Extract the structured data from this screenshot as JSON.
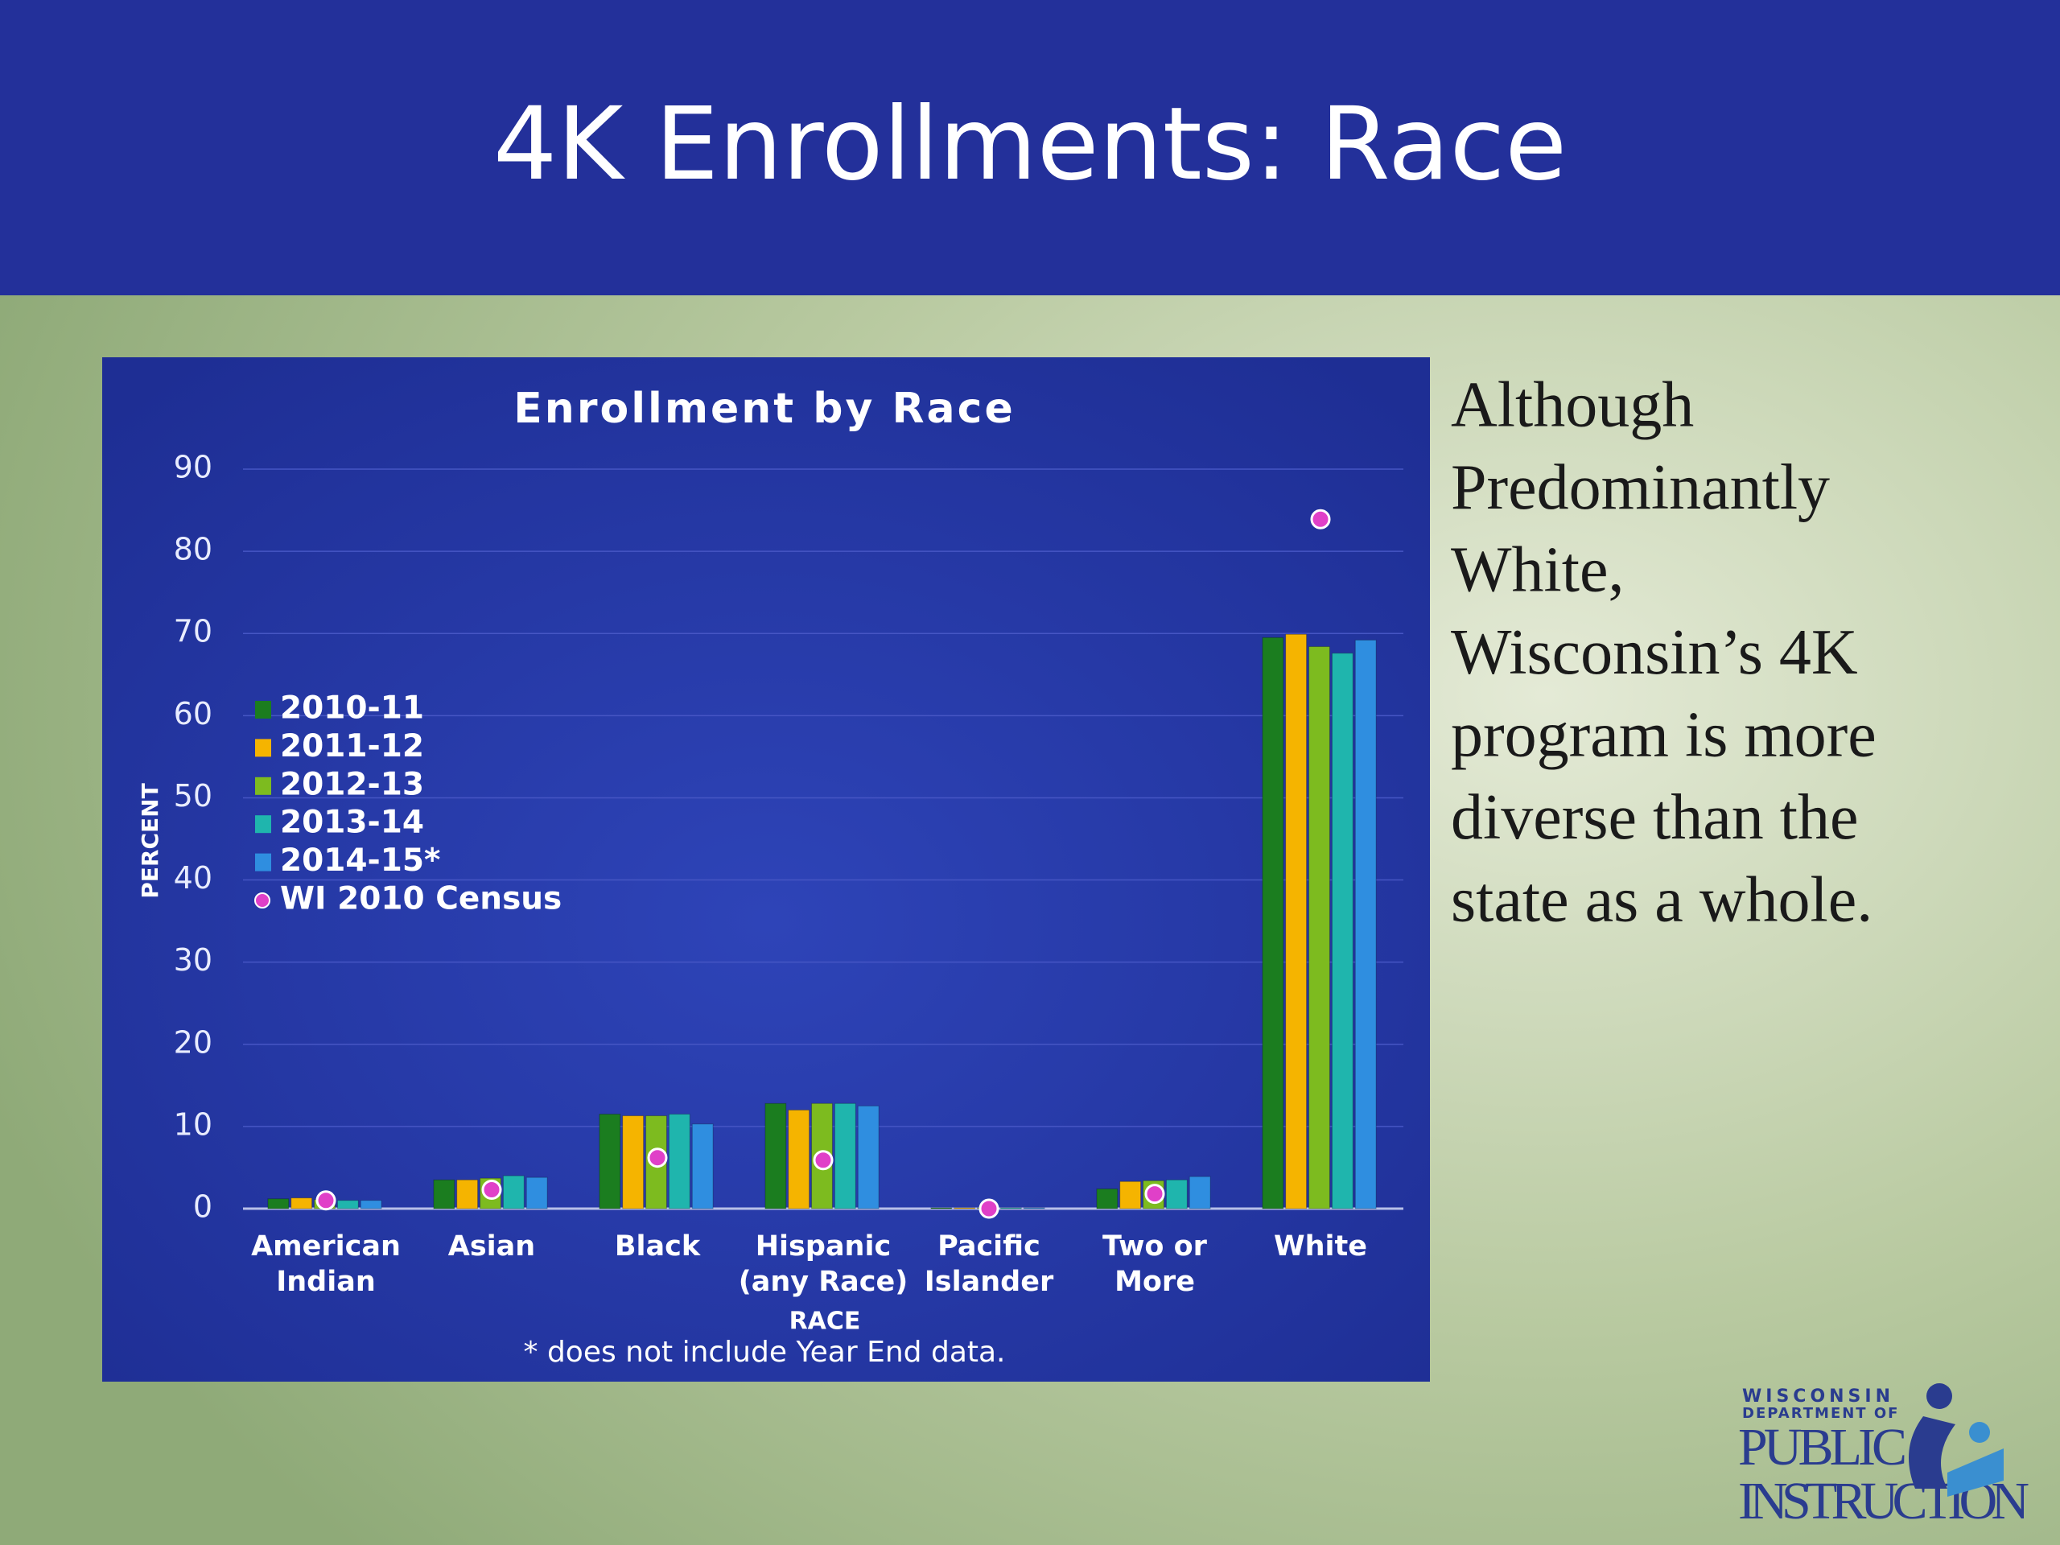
{
  "slide": {
    "title": "4K Enrollments: Race",
    "body_lines": [
      "Although",
      "Predominantly",
      "White,",
      "Wisconsin’s 4K",
      "program is more",
      "diverse than the",
      "state as a whole."
    ],
    "logo": {
      "line1": "WISCONSIN",
      "line2": "DEPARTMENT OF",
      "line3": "PUBLIC",
      "line4": "INSTRUCTION"
    }
  },
  "chart_data": {
    "type": "bar",
    "title": "Enrollment by Race",
    "x_label": "RACE",
    "y_label": "PERCENT",
    "footnote": "* does not include Year End data.",
    "categories": [
      "American Indian",
      "Asian",
      "Black",
      "Hispanic (any Race)",
      "Pacific Islander",
      "Two or More",
      "White"
    ],
    "series": [
      {
        "name": "2010-11",
        "color": "#1b7d1f",
        "values": [
          1.2,
          3.5,
          11.5,
          12.8,
          0.1,
          2.4,
          69.5
        ]
      },
      {
        "name": "2011-12",
        "color": "#f5b400",
        "values": [
          1.3,
          3.5,
          11.3,
          12.0,
          0.1,
          3.3,
          69.9
        ]
      },
      {
        "name": "2012-13",
        "color": "#7dbb1f",
        "values": [
          1.1,
          3.7,
          11.3,
          12.8,
          0.1,
          3.4,
          68.4
        ]
      },
      {
        "name": "2013-14",
        "color": "#1fb5ad",
        "values": [
          1.0,
          4.0,
          11.5,
          12.8,
          0.1,
          3.5,
          67.6
        ]
      },
      {
        "name": "2014-15*",
        "color": "#2f8ee0",
        "values": [
          1.0,
          3.8,
          10.3,
          12.5,
          0.1,
          3.9,
          69.2
        ]
      },
      {
        "name": "WI 2010 Census",
        "type": "scatter",
        "color": "#e040c8",
        "values": [
          1.0,
          2.3,
          6.2,
          5.9,
          0.0,
          1.8,
          83.9
        ]
      }
    ],
    "ylim": [
      0,
      90
    ],
    "yticks": [
      0,
      10,
      20,
      30,
      40,
      50,
      60,
      70,
      80,
      90
    ],
    "grid": true,
    "legend": "left"
  }
}
